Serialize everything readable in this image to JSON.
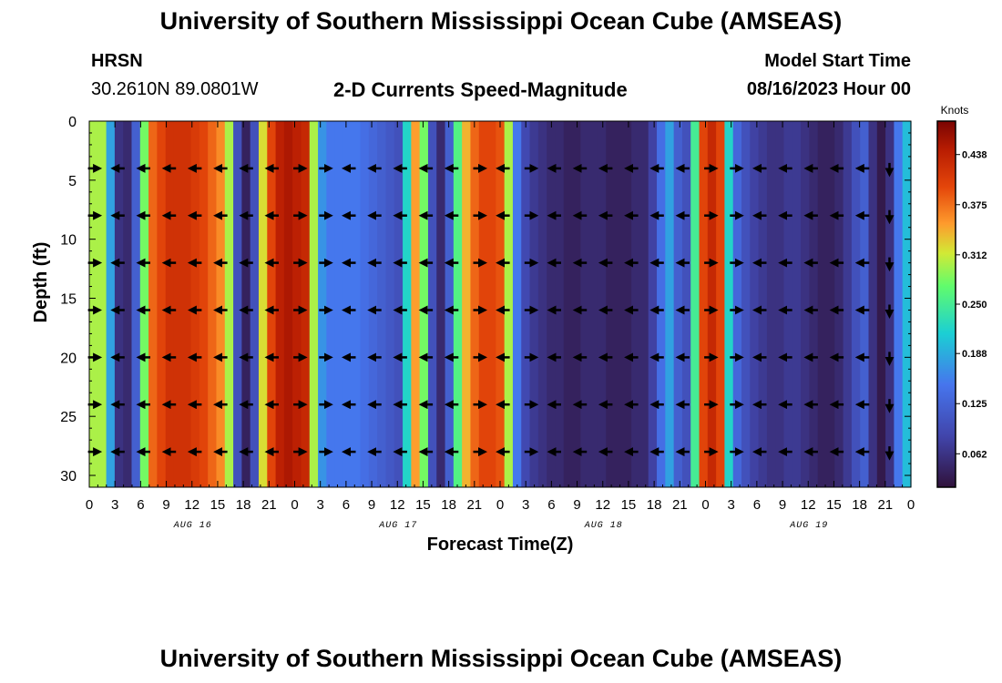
{
  "header": {
    "title": "University of Southern Mississippi Ocean Cube (AMSEAS)",
    "station": "HRSN",
    "coordinates": "30.2610N  89.0801W",
    "plot_title": "2-D Currents Speed-Magnitude",
    "model_start_label": "Model Start Time",
    "model_start_value": "08/16/2023 Hour 00"
  },
  "footer": {
    "title": "University of Southern Mississippi Ocean Cube (AMSEAS)"
  },
  "chart_data": {
    "type": "heatmap",
    "title": "2-D Currents Speed-Magnitude",
    "xlabel": "Forecast Time(Z)",
    "ylabel": "Depth (ft)",
    "xlim": [
      0,
      96
    ],
    "ylim": [
      31,
      0
    ],
    "x_ticks": [
      0,
      3,
      6,
      9,
      12,
      15,
      18,
      21,
      24,
      27,
      30,
      33,
      36,
      39,
      42,
      45,
      48,
      51,
      54,
      57,
      60,
      63,
      66,
      69,
      72,
      75,
      78,
      81,
      84,
      87,
      90,
      93,
      96
    ],
    "x_tick_labels": [
      "0",
      "3",
      "6",
      "9",
      "12",
      "15",
      "18",
      "21",
      "0",
      "3",
      "6",
      "9",
      "12",
      "15",
      "18",
      "21",
      "0",
      "3",
      "6",
      "9",
      "12",
      "15",
      "18",
      "21",
      "0",
      "3",
      "6",
      "9",
      "12",
      "15",
      "18",
      "21",
      "0"
    ],
    "y_ticks": [
      0,
      5,
      10,
      15,
      20,
      25,
      30
    ],
    "y_tick_labels": [
      "0",
      "5",
      "10",
      "15",
      "20",
      "25",
      "30"
    ],
    "date_labels": [
      {
        "x": 12,
        "label": "AUG 16"
      },
      {
        "x": 36,
        "label": "AUG 17"
      },
      {
        "x": 60,
        "label": "AUG 18"
      },
      {
        "x": 84,
        "label": "AUG 19"
      }
    ],
    "colorbar": {
      "title": "Knots",
      "min": 0.02,
      "max": 0.48,
      "ticks": [
        0.062,
        0.125,
        0.188,
        0.25,
        0.312,
        0.375,
        0.438
      ],
      "tick_labels": [
        "0.062",
        "0.125",
        "0.188",
        "0.250",
        "0.312",
        "0.375",
        "0.438"
      ]
    },
    "speed_by_hour_knots": [
      0.3,
      0.3,
      0.18,
      0.06,
      0.05,
      0.12,
      0.28,
      0.38,
      0.4,
      0.42,
      0.42,
      0.42,
      0.41,
      0.4,
      0.38,
      0.36,
      0.3,
      0.1,
      0.04,
      0.1,
      0.32,
      0.4,
      0.44,
      0.45,
      0.44,
      0.43,
      0.3,
      0.17,
      0.15,
      0.15,
      0.15,
      0.15,
      0.14,
      0.13,
      0.12,
      0.11,
      0.1,
      0.22,
      0.35,
      0.28,
      0.1,
      0.05,
      0.12,
      0.26,
      0.34,
      0.38,
      0.4,
      0.4,
      0.39,
      0.3,
      0.15,
      0.09,
      0.07,
      0.06,
      0.05,
      0.05,
      0.04,
      0.04,
      0.05,
      0.05,
      0.05,
      0.04,
      0.04,
      0.04,
      0.05,
      0.05,
      0.08,
      0.14,
      0.18,
      0.12,
      0.1,
      0.25,
      0.4,
      0.43,
      0.4,
      0.22,
      0.13,
      0.1,
      0.08,
      0.07,
      0.06,
      0.06,
      0.07,
      0.07,
      0.06,
      0.05,
      0.04,
      0.04,
      0.05,
      0.07,
      0.1,
      0.12,
      0.06,
      0.03,
      0.06,
      0.15,
      0.2
    ],
    "vector_depths_ft": [
      4,
      8,
      12,
      16,
      20,
      24,
      28
    ],
    "vector_hours": [
      0,
      3,
      6,
      9,
      12,
      15,
      18,
      21,
      24,
      27,
      30,
      33,
      36,
      39,
      42,
      45,
      48,
      51,
      54,
      57,
      60,
      63,
      66,
      69,
      72,
      75,
      78,
      81,
      84,
      87,
      90,
      93
    ],
    "vector_directions": [
      "E",
      "W",
      "W",
      "W",
      "W",
      "W",
      "W",
      "W",
      "E",
      "E",
      "W",
      "W",
      "W",
      "W",
      "W",
      "E",
      "W",
      "E",
      "W",
      "W",
      "W",
      "W",
      "W",
      "W",
      "E",
      "E",
      "W",
      "W",
      "W",
      "W",
      "W",
      "S"
    ]
  }
}
